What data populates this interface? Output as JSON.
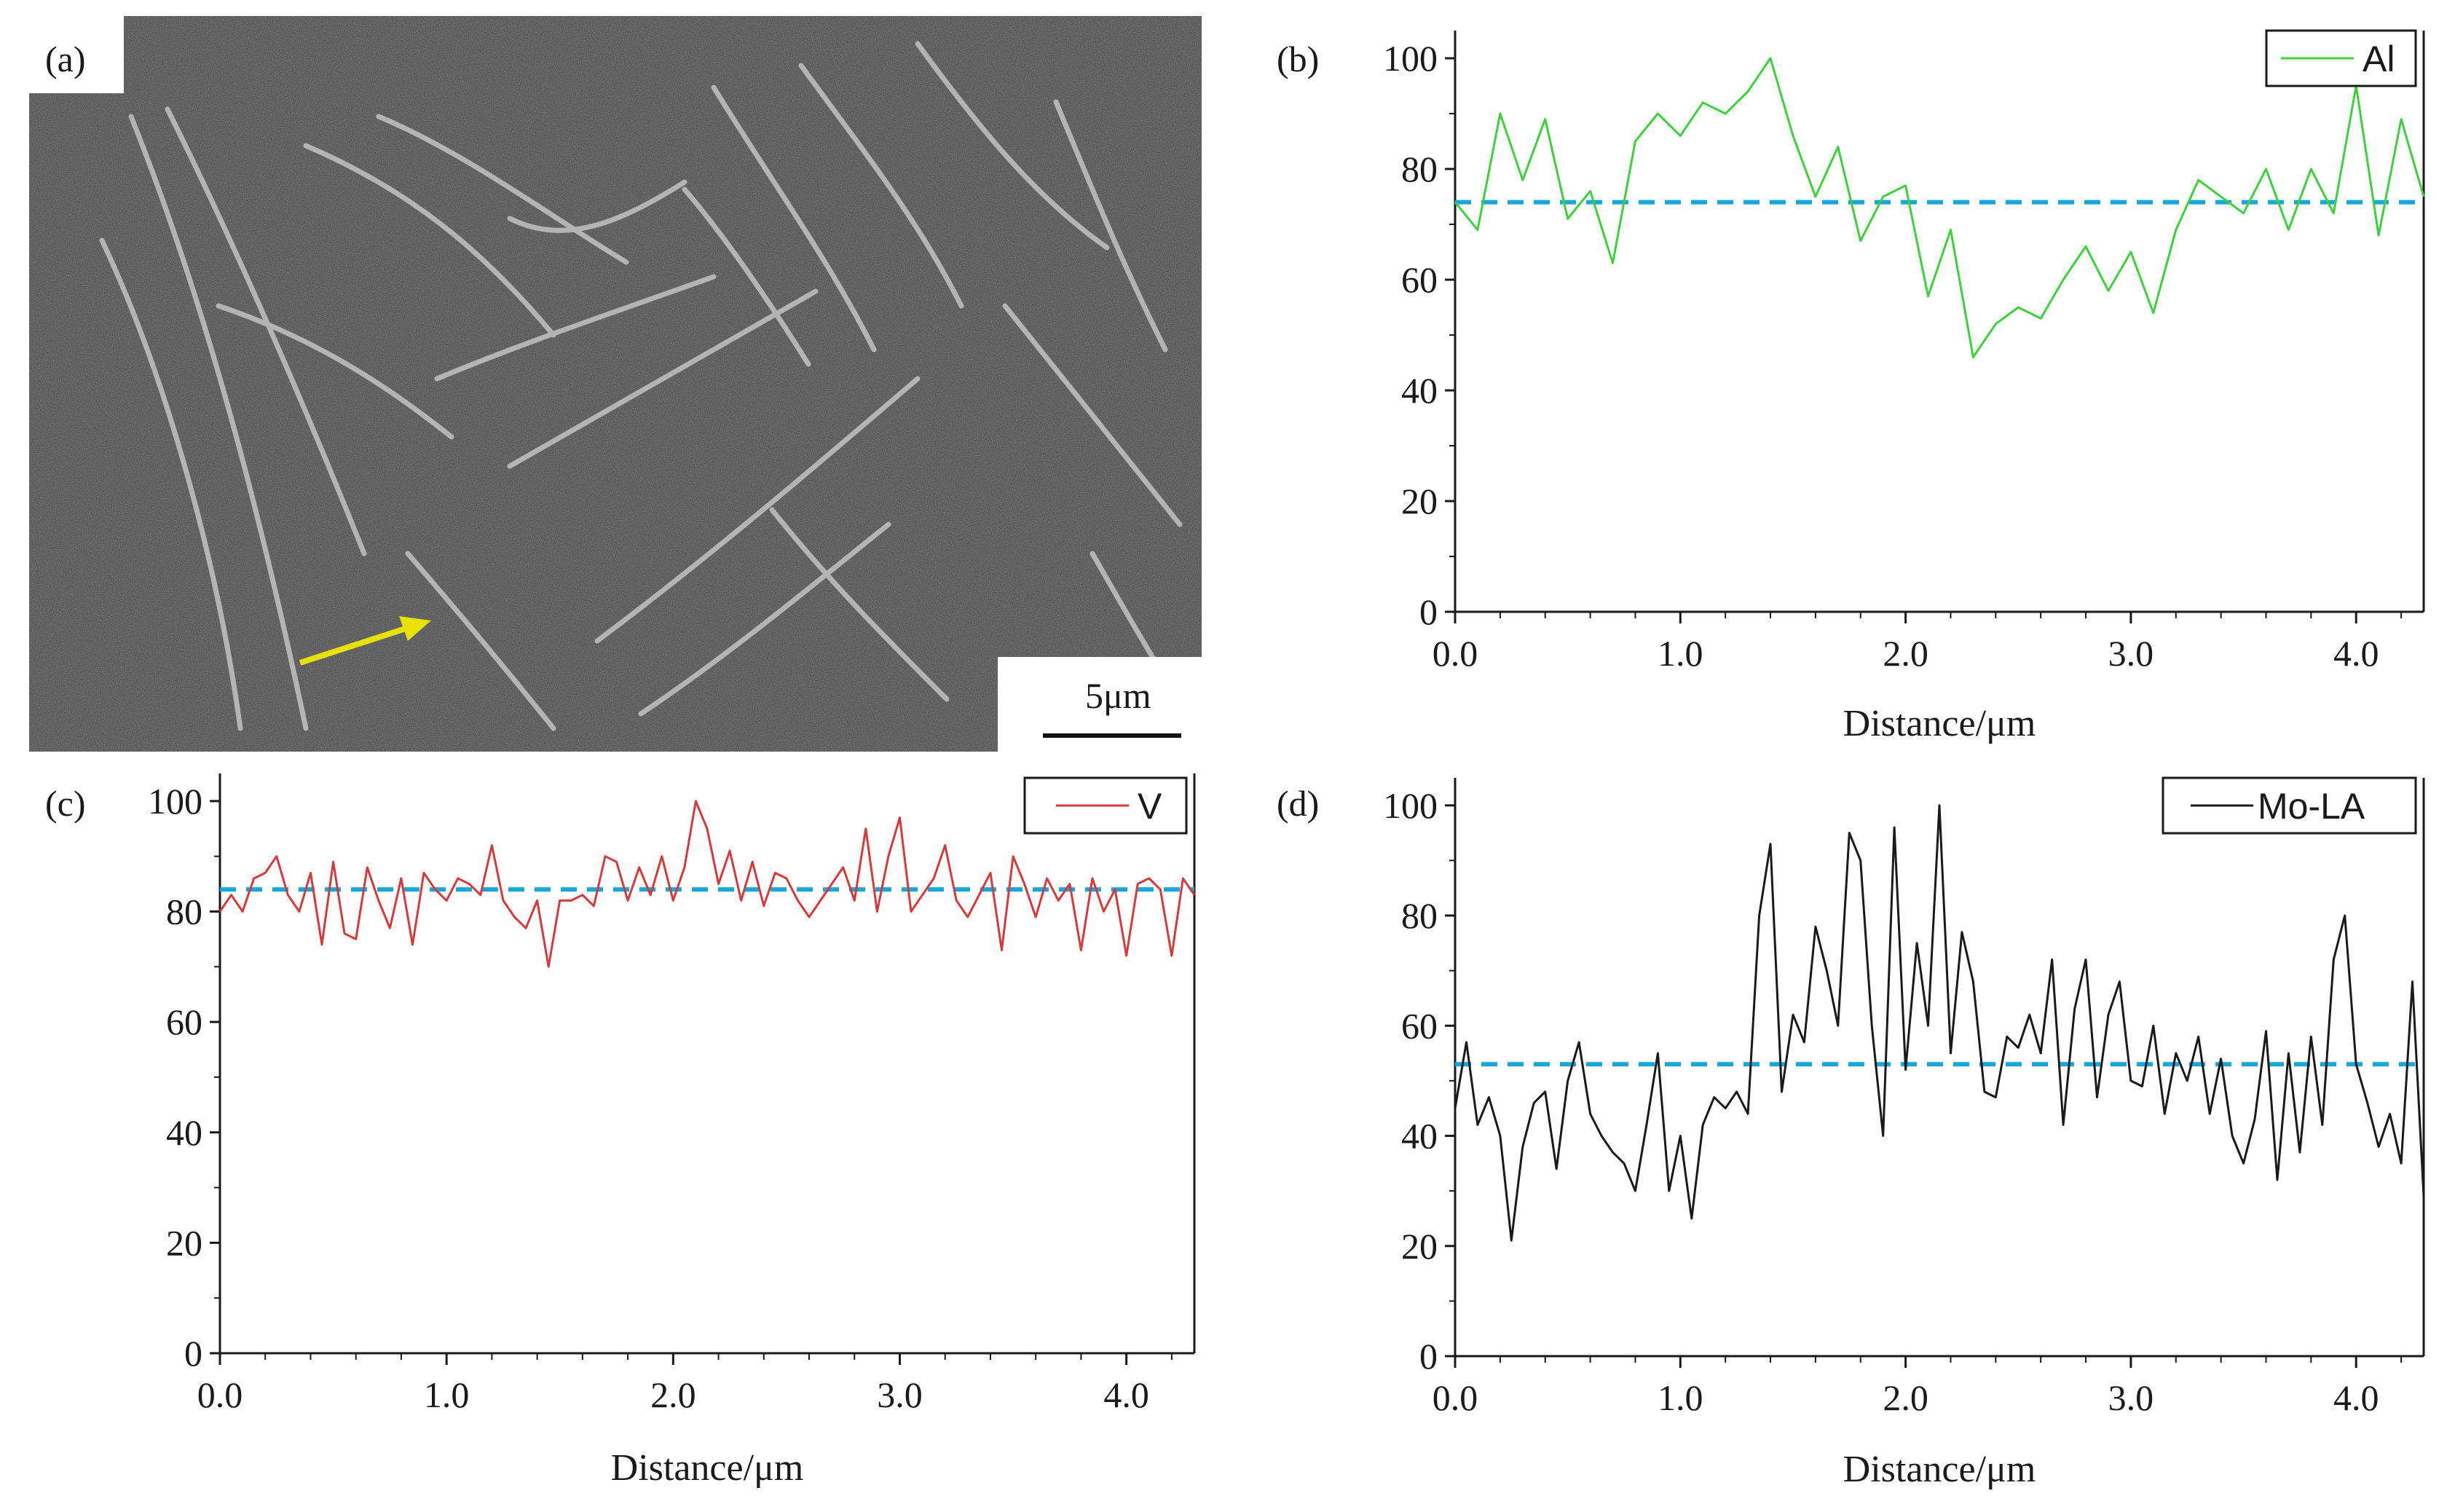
{
  "figure": {
    "sem": {
      "label": "(a)",
      "scale_bar": "5μm",
      "arrow_color": "#e8e000",
      "background": "#3a3a3a"
    }
  },
  "chart_data": [
    {
      "id": "b",
      "type": "line",
      "label": "(b)",
      "xlabel": "Distance/μm",
      "ylabel": "",
      "xlim": [
        0,
        4.3
      ],
      "ylim": [
        0,
        105
      ],
      "xticks": [
        0,
        1,
        2,
        3,
        4
      ],
      "xtick_labels": [
        "0.0",
        "1.0",
        "2.0",
        "3.0",
        "4.0"
      ],
      "yticks": [
        0,
        20,
        40,
        60,
        80,
        100
      ],
      "ytick_labels": [
        "0",
        "20",
        "40",
        "60",
        "80",
        "100"
      ],
      "legend_position": "top-right",
      "mean_line": {
        "value": 74,
        "color": "#1aa6d9"
      },
      "series": [
        {
          "name": "Al",
          "color": "#3ed13e",
          "x": [
            0.0,
            0.1,
            0.2,
            0.3,
            0.4,
            0.5,
            0.6,
            0.7,
            0.8,
            0.9,
            1.0,
            1.1,
            1.2,
            1.3,
            1.4,
            1.5,
            1.6,
            1.7,
            1.8,
            1.9,
            2.0,
            2.1,
            2.2,
            2.3,
            2.4,
            2.5,
            2.6,
            2.7,
            2.8,
            2.9,
            3.0,
            3.1,
            3.2,
            3.3,
            3.4,
            3.5,
            3.6,
            3.7,
            3.8,
            3.9,
            4.0,
            4.1,
            4.2,
            4.3
          ],
          "values": [
            74,
            69,
            90,
            78,
            89,
            71,
            76,
            63,
            85,
            90,
            86,
            92,
            90,
            94,
            100,
            86,
            75,
            84,
            67,
            75,
            77,
            57,
            69,
            46,
            52,
            55,
            53,
            60,
            66,
            58,
            65,
            54,
            69,
            78,
            75,
            72,
            80,
            69,
            80,
            72,
            95,
            68,
            89,
            75
          ]
        }
      ]
    },
    {
      "id": "c",
      "type": "line",
      "label": "(c)",
      "xlabel": "Distance/μm",
      "ylabel": "",
      "xlim": [
        0,
        4.3
      ],
      "ylim": [
        0,
        105
      ],
      "xticks": [
        0,
        1,
        2,
        3,
        4
      ],
      "xtick_labels": [
        "0.0",
        "1.0",
        "2.0",
        "3.0",
        "4.0"
      ],
      "yticks": [
        0,
        20,
        40,
        60,
        80,
        100
      ],
      "ytick_labels": [
        "0",
        "20",
        "40",
        "60",
        "80",
        "100"
      ],
      "legend_position": "top-right",
      "mean_line": {
        "value": 84,
        "color": "#1aa6d9"
      },
      "series": [
        {
          "name": "V",
          "color": "#d63a3a",
          "x": [
            0.0,
            0.05,
            0.1,
            0.15,
            0.2,
            0.25,
            0.3,
            0.35,
            0.4,
            0.45,
            0.5,
            0.55,
            0.6,
            0.65,
            0.7,
            0.75,
            0.8,
            0.85,
            0.9,
            0.95,
            1.0,
            1.05,
            1.1,
            1.15,
            1.2,
            1.25,
            1.3,
            1.35,
            1.4,
            1.45,
            1.5,
            1.55,
            1.6,
            1.65,
            1.7,
            1.75,
            1.8,
            1.85,
            1.9,
            1.95,
            2.0,
            2.05,
            2.1,
            2.15,
            2.2,
            2.25,
            2.3,
            2.35,
            2.4,
            2.45,
            2.5,
            2.55,
            2.6,
            2.65,
            2.7,
            2.75,
            2.8,
            2.85,
            2.9,
            2.95,
            3.0,
            3.05,
            3.1,
            3.15,
            3.2,
            3.25,
            3.3,
            3.35,
            3.4,
            3.45,
            3.5,
            3.55,
            3.6,
            3.65,
            3.7,
            3.75,
            3.8,
            3.85,
            3.9,
            3.95,
            4.0,
            4.05,
            4.1,
            4.15,
            4.2,
            4.25,
            4.3
          ],
          "values": [
            80,
            83,
            80,
            86,
            87,
            90,
            83,
            80,
            87,
            74,
            89,
            76,
            75,
            88,
            82,
            77,
            86,
            74,
            87,
            84,
            82,
            86,
            85,
            83,
            92,
            82,
            79,
            77,
            82,
            70,
            82,
            82,
            83,
            81,
            90,
            89,
            82,
            88,
            83,
            90,
            82,
            88,
            100,
            95,
            85,
            91,
            82,
            89,
            81,
            87,
            86,
            82,
            79,
            82,
            85,
            88,
            82,
            95,
            80,
            90,
            97,
            80,
            83,
            86,
            92,
            82,
            79,
            83,
            87,
            73,
            90,
            85,
            79,
            86,
            82,
            85,
            73,
            86,
            80,
            84,
            72,
            85,
            86,
            84,
            72,
            86,
            83
          ]
        }
      ]
    },
    {
      "id": "d",
      "type": "line",
      "label": "(d)",
      "xlabel": "Distance/μm",
      "ylabel": "",
      "xlim": [
        0,
        4.3
      ],
      "ylim": [
        0,
        105
      ],
      "xticks": [
        0,
        1,
        2,
        3,
        4
      ],
      "xtick_labels": [
        "0.0",
        "1.0",
        "2.0",
        "3.0",
        "4.0"
      ],
      "yticks": [
        0,
        20,
        40,
        60,
        80,
        100
      ],
      "ytick_labels": [
        "0",
        "20",
        "40",
        "60",
        "80",
        "100"
      ],
      "legend_position": "top-right",
      "mean_line": {
        "value": 53,
        "color": "#1aa6d9"
      },
      "series": [
        {
          "name": "Mo-LA",
          "color": "#1a1a1a",
          "x": [
            0.0,
            0.05,
            0.1,
            0.15,
            0.2,
            0.25,
            0.3,
            0.35,
            0.4,
            0.45,
            0.5,
            0.55,
            0.6,
            0.65,
            0.7,
            0.75,
            0.8,
            0.85,
            0.9,
            0.95,
            1.0,
            1.05,
            1.1,
            1.15,
            1.2,
            1.25,
            1.3,
            1.35,
            1.4,
            1.45,
            1.5,
            1.55,
            1.6,
            1.65,
            1.7,
            1.75,
            1.8,
            1.85,
            1.9,
            1.95,
            2.0,
            2.05,
            2.1,
            2.15,
            2.2,
            2.25,
            2.3,
            2.35,
            2.4,
            2.45,
            2.5,
            2.55,
            2.6,
            2.65,
            2.7,
            2.75,
            2.8,
            2.85,
            2.9,
            2.95,
            3.0,
            3.05,
            3.1,
            3.15,
            3.2,
            3.25,
            3.3,
            3.35,
            3.4,
            3.45,
            3.5,
            3.55,
            3.6,
            3.65,
            3.7,
            3.75,
            3.8,
            3.85,
            3.9,
            3.95,
            4.0,
            4.05,
            4.1,
            4.15,
            4.2,
            4.25,
            4.3
          ],
          "values": [
            45,
            57,
            42,
            47,
            40,
            21,
            38,
            46,
            48,
            34,
            50,
            57,
            44,
            40,
            37,
            35,
            30,
            42,
            55,
            30,
            40,
            25,
            42,
            47,
            45,
            48,
            44,
            80,
            93,
            48,
            62,
            57,
            78,
            70,
            60,
            95,
            90,
            60,
            40,
            96,
            52,
            75,
            60,
            100,
            55,
            77,
            68,
            48,
            47,
            58,
            56,
            62,
            55,
            72,
            42,
            63,
            72,
            47,
            62,
            68,
            50,
            49,
            60,
            44,
            55,
            50,
            58,
            44,
            54,
            40,
            35,
            43,
            59,
            32,
            55,
            37,
            58,
            42,
            72,
            80,
            53,
            46,
            38,
            44,
            35,
            68,
            29
          ]
        }
      ]
    }
  ]
}
